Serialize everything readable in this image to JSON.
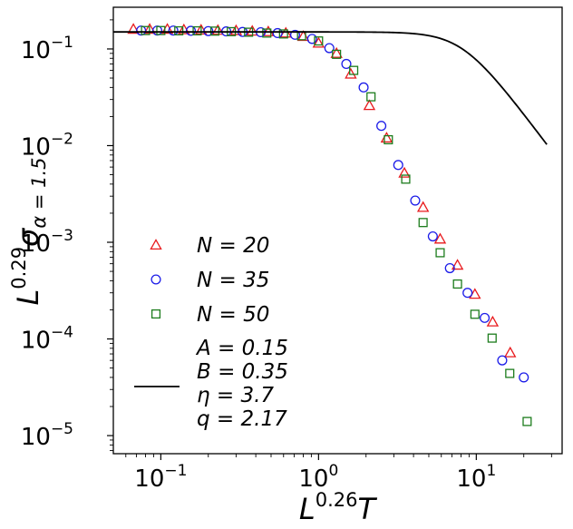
{
  "chart_data": {
    "type": "scatter",
    "title": "",
    "xlabel": "L^{0.26} T",
    "ylabel": "L^{0.29} σ_{α=1.5}",
    "xlabel_parts": {
      "base": "L",
      "exp": "0.26",
      "tail": "T"
    },
    "ylabel_parts": {
      "base": "L",
      "exp": "0.29",
      "sym": "σ",
      "sub": "α = 1.5"
    },
    "xscale": "log",
    "yscale": "log",
    "xlim": [
      0.05,
      35
    ],
    "ylim": [
      6.5e-06,
      0.27
    ],
    "x_ticks": [
      {
        "value": 0.1,
        "base": "10",
        "exp": "−1"
      },
      {
        "value": 1,
        "base": "10",
        "exp": "0"
      },
      {
        "value": 10,
        "base": "10",
        "exp": "1"
      }
    ],
    "y_ticks": [
      {
        "value": 0.1,
        "base": "10",
        "exp": "−1"
      },
      {
        "value": 0.01,
        "base": "10",
        "exp": "−2"
      },
      {
        "value": 0.001,
        "base": "10",
        "exp": "−3"
      },
      {
        "value": 0.0001,
        "base": "10",
        "exp": "−4"
      },
      {
        "value": 1e-05,
        "base": "10",
        "exp": "−5"
      }
    ],
    "grid": false,
    "legend_position": "lower-left",
    "series": [
      {
        "name": "N = 20",
        "marker": "triangle",
        "color": "#e8191c",
        "x": [
          0.067,
          0.085,
          0.11,
          0.14,
          0.18,
          0.23,
          0.3,
          0.38,
          0.48,
          0.62,
          0.8,
          1.0,
          1.3,
          1.6,
          2.1,
          2.7,
          3.5,
          4.6,
          5.9,
          7.6,
          9.8,
          12.7,
          16.4
        ],
        "y": [
          0.16,
          0.16,
          0.16,
          0.158,
          0.157,
          0.156,
          0.155,
          0.153,
          0.151,
          0.146,
          0.135,
          0.115,
          0.09,
          0.055,
          0.026,
          0.012,
          0.0052,
          0.0023,
          0.00108,
          0.00058,
          0.00029,
          0.00015,
          7.2e-05
        ]
      },
      {
        "name": "N = 35",
        "marker": "circle",
        "color": "#1c1ce8",
        "x": [
          0.075,
          0.095,
          0.12,
          0.155,
          0.2,
          0.26,
          0.33,
          0.43,
          0.55,
          0.71,
          0.91,
          1.17,
          1.5,
          1.93,
          2.5,
          3.2,
          4.1,
          5.3,
          6.8,
          8.8,
          11.3,
          14.6,
          20
        ],
        "y": [
          0.155,
          0.155,
          0.155,
          0.154,
          0.153,
          0.152,
          0.15,
          0.149,
          0.146,
          0.14,
          0.127,
          0.102,
          0.07,
          0.04,
          0.016,
          0.0063,
          0.0027,
          0.00115,
          0.00054,
          0.0003,
          0.000165,
          6e-05,
          4e-05
        ]
      },
      {
        "name": "N = 50",
        "marker": "square",
        "color": "#1c7c1c",
        "x": [
          0.08,
          0.1,
          0.13,
          0.17,
          0.22,
          0.28,
          0.36,
          0.47,
          0.6,
          0.78,
          1.0,
          1.3,
          1.67,
          2.15,
          2.77,
          3.57,
          4.6,
          5.9,
          7.6,
          9.8,
          12.6,
          16.3,
          21
        ],
        "y": [
          0.155,
          0.155,
          0.154,
          0.154,
          0.153,
          0.151,
          0.149,
          0.146,
          0.143,
          0.137,
          0.121,
          0.088,
          0.06,
          0.032,
          0.0115,
          0.0045,
          0.0016,
          0.00078,
          0.00037,
          0.00018,
          0.000102,
          4.4e-05,
          1.4e-05
        ]
      }
    ],
    "fit": {
      "label_lines": [
        "A = 0.15",
        "B = 0.35",
        "η = 3.7",
        "q = 2.17"
      ],
      "color": "#000000",
      "params": {
        "A": 0.15,
        "B": 0.35,
        "eta": 3.7,
        "q": 2.17
      },
      "x_range": [
        0.05,
        28
      ]
    }
  }
}
